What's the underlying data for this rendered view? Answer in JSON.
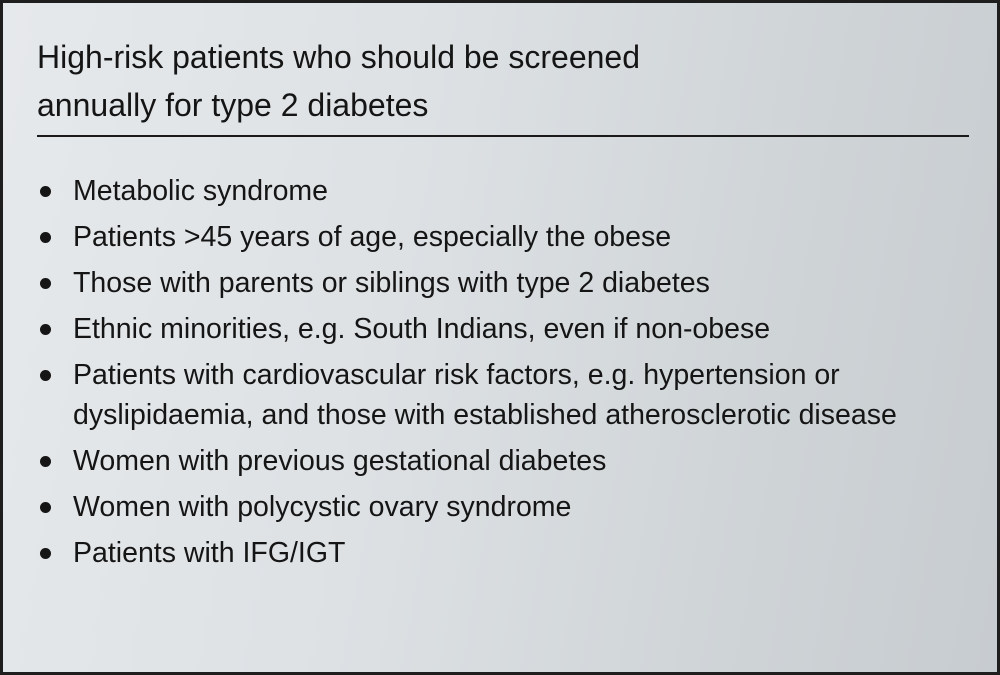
{
  "title": "High-risk patients who should be screened annually for type 2 diabetes",
  "title_lines": [
    "High-risk patients who should be screened",
    "annually for type 2 diabetes"
  ],
  "items": [
    "Metabolic syndrome",
    "Patients >45 years of age, especially the obese",
    "Those with parents or siblings with type 2 diabetes",
    "Ethnic minorities, e.g. South Indians, even if non-obese",
    "Patients with cardiovascular risk factors, e.g. hypertension or dyslipidaemia, and those with established atherosclerotic disease",
    "Women with previous gestational diabetes",
    "Women with polycystic ovary syndrome",
    "Patients with IFG/IGT"
  ]
}
